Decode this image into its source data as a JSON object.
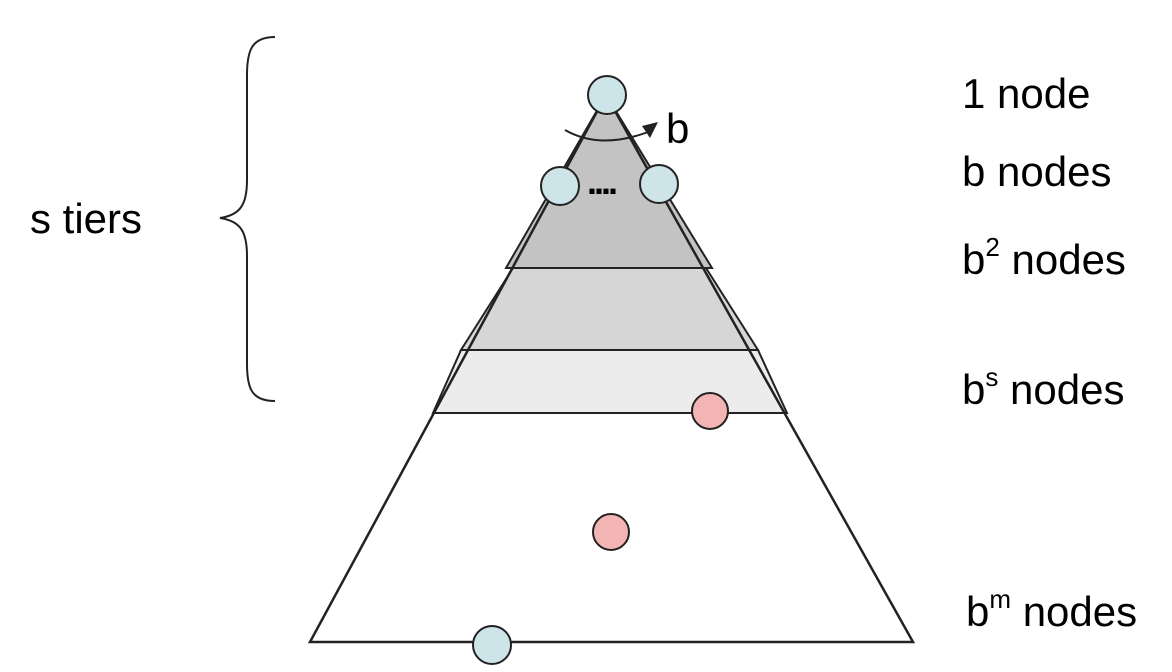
{
  "labels": {
    "tiers": "s tiers",
    "branch": "b",
    "dots": "...."
  },
  "levels": [
    {
      "base": "1",
      "sup": "",
      "text": " node"
    },
    {
      "base": "b",
      "sup": "",
      "text": " nodes"
    },
    {
      "base": "b",
      "sup": "2",
      "text": " nodes"
    },
    {
      "base": "b",
      "sup": "s",
      "text": " nodes"
    },
    {
      "base": "b",
      "sup": "m",
      "text": " nodes"
    }
  ],
  "colors": {
    "band_dark": "#c3c3c3",
    "band_mid": "#d6d6d6",
    "band_light": "#ececec",
    "node_blue": "#cde4e8",
    "node_pink": "#f3b5b3",
    "stroke": "#222222"
  }
}
